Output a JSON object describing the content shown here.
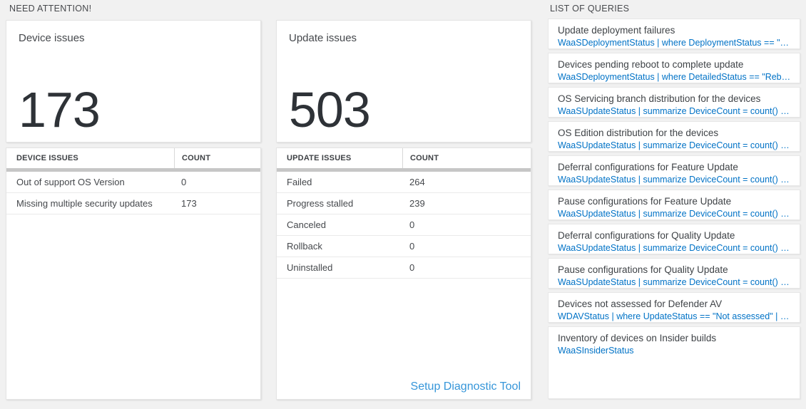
{
  "colors": {
    "page_background": "#f1f1f1",
    "card_background": "#ffffff",
    "big_number_color": "#2e3237",
    "query_link_blue": "#0072c6",
    "footer_link_blue": "#3696d9",
    "header_bar_gray": "#c6c6c6"
  },
  "sections": {
    "need_attention": {
      "label": "NEED ATTENTION!",
      "device_card": {
        "title": "Device issues",
        "count": "173"
      },
      "update_card": {
        "title": "Update issues",
        "count": "503"
      },
      "device_table": {
        "headers": [
          "DEVICE ISSUES",
          "COUNT"
        ],
        "rows": [
          {
            "name": "Out of support OS Version",
            "count": "0"
          },
          {
            "name": "Missing multiple security updates",
            "count": "173"
          }
        ]
      },
      "update_table": {
        "headers": [
          "UPDATE ISSUES",
          "COUNT"
        ],
        "rows": [
          {
            "name": "Failed",
            "count": "264"
          },
          {
            "name": "Progress stalled",
            "count": "239"
          },
          {
            "name": "Canceled",
            "count": "0"
          },
          {
            "name": "Rollback",
            "count": "0"
          },
          {
            "name": "Uninstalled",
            "count": "0"
          }
        ],
        "footer_link": "Setup Diagnostic Tool"
      }
    },
    "queries": {
      "label": "LIST OF QUERIES",
      "items": [
        {
          "title": "Update deployment failures",
          "query": "WaaSDeploymentStatus | where DeploymentStatus == \"Failed\" |..."
        },
        {
          "title": "Devices pending reboot to complete update",
          "query": "WaaSDeploymentStatus | where DetailedStatus == \"Reboot pend..."
        },
        {
          "title": "OS Servicing branch distribution for the devices",
          "query": "WaaSUpdateStatus | summarize DeviceCount = count() by OSSer..."
        },
        {
          "title": "OS Edition distribution for the devices",
          "query": "WaaSUpdateStatus | summarize DeviceCount = count() by OSEdit..."
        },
        {
          "title": "Deferral configurations for Feature Update",
          "query": "WaaSUpdateStatus | summarize DeviceCount = count() by Featur..."
        },
        {
          "title": "Pause configurations for Feature Update",
          "query": "WaaSUpdateStatus | summarize DeviceCount = count() by Featur..."
        },
        {
          "title": "Deferral configurations for Quality Update",
          "query": "WaaSUpdateStatus | summarize DeviceCount = count() by Qualit..."
        },
        {
          "title": "Pause configurations for Quality Update",
          "query": "WaaSUpdateStatus | summarize DeviceCount = count() by Qualit..."
        },
        {
          "title": "Devices not assessed for Defender AV",
          "query": "WDAVStatus | where UpdateStatus == \"Not assessed\" | render ta..."
        },
        {
          "title": "Inventory of devices on Insider builds",
          "query": "WaaSInsiderStatus"
        }
      ]
    }
  }
}
